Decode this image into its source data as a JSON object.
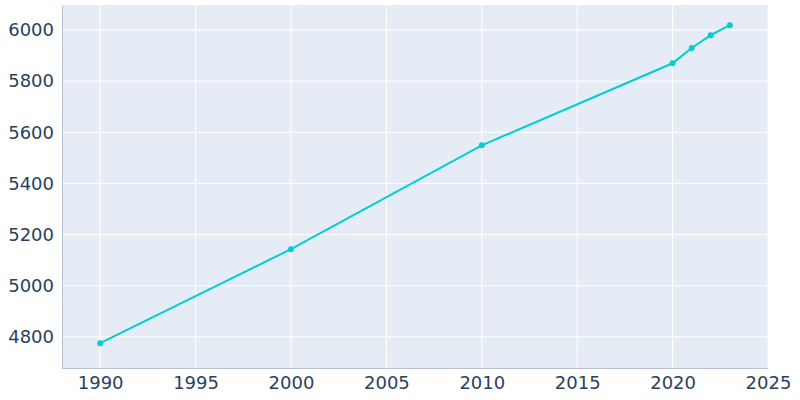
{
  "chart_data": {
    "type": "line",
    "x": [
      1990,
      2000,
      2010,
      2020,
      2021,
      2022,
      2023
    ],
    "values": [
      4775,
      5143,
      5549,
      5870,
      5930,
      5980,
      6019
    ],
    "color": "#00ced1",
    "marker": "circle",
    "xlim": [
      1988,
      2025
    ],
    "ylim": [
      4678,
      6098
    ],
    "xticks": [
      1990,
      1995,
      2000,
      2005,
      2010,
      2015,
      2020,
      2025
    ],
    "yticks": [
      4800,
      5000,
      5200,
      5400,
      5600,
      5800,
      6000
    ],
    "grid": true
  }
}
